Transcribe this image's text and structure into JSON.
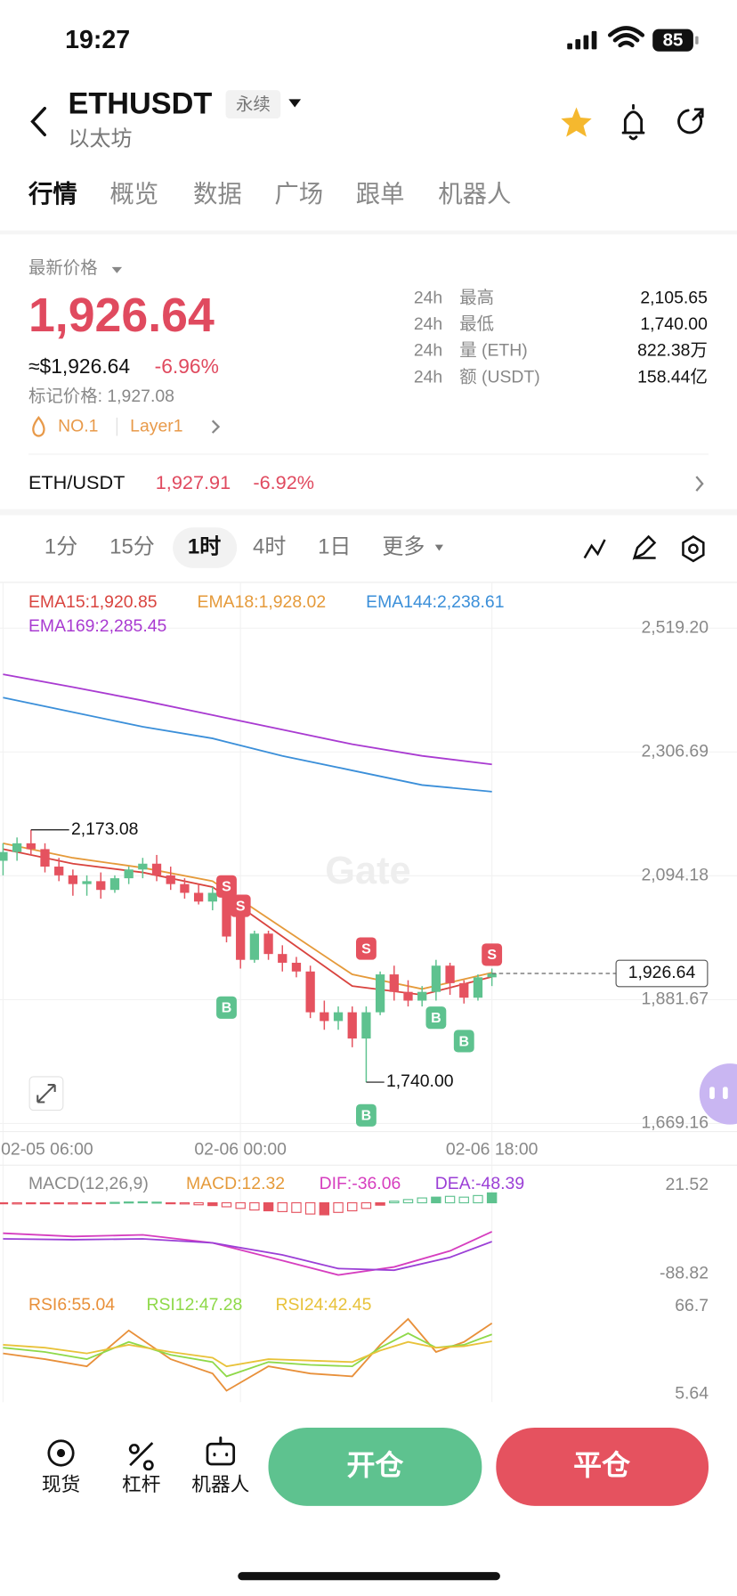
{
  "status": {
    "time": "19:27",
    "battery": "85"
  },
  "header": {
    "symbol": "ETHUSDT",
    "tag": "永续",
    "name": "以太坊"
  },
  "tabs": [
    "行情",
    "概览",
    "数据",
    "广场",
    "跟单",
    "机器人"
  ],
  "price": {
    "label": "最新价格",
    "last": "1,926.64",
    "approx": "≈$1,926.64",
    "change": "-6.96%",
    "mark": "标记价格: 1,927.08",
    "rank": "NO.1",
    "sector": "Layer1"
  },
  "stats": [
    {
      "period": "24h",
      "label": "最高",
      "value": "2,105.65"
    },
    {
      "period": "24h",
      "label": "最低",
      "value": "1,740.00"
    },
    {
      "period": "24h",
      "label": "量 (ETH)",
      "value": "822.38万"
    },
    {
      "period": "24h",
      "label": "额 (USDT)",
      "value": "158.44亿"
    }
  ],
  "spot": {
    "pair": "ETH/USDT",
    "price": "1,927.91",
    "change": "-6.92%"
  },
  "intervals": [
    "1分",
    "15分",
    "1时",
    "4时",
    "1日",
    "更多"
  ],
  "chart_data": {
    "type": "candlestick",
    "watermark": "Gate",
    "categories": [
      "02-05 06:00",
      null,
      null,
      null,
      null,
      null,
      null,
      null,
      null,
      null,
      null,
      null,
      null,
      null,
      null,
      null,
      null,
      "02-06 00:00",
      null,
      null,
      null,
      null,
      null,
      null,
      null,
      null,
      null,
      null,
      null,
      null,
      null,
      null,
      null,
      null,
      null,
      "02-06 18:00"
    ],
    "open": [
      2120,
      2135,
      2150,
      2140,
      2110,
      2095,
      2080,
      2085,
      2070,
      2090,
      2105,
      2115,
      2095,
      2080,
      2065,
      2050,
      2065,
      2030,
      1950,
      1995,
      1960,
      1945,
      1930,
      1860,
      1845,
      1860,
      1815,
      1860,
      1925,
      1895,
      1880,
      1895,
      1940,
      1910,
      1885,
      1920
    ],
    "high": [
      2150,
      2160,
      2173.08,
      2150,
      2125,
      2105,
      2095,
      2100,
      2095,
      2110,
      2125,
      2130,
      2110,
      2090,
      2080,
      2075,
      2070,
      2050,
      2000,
      2000,
      1975,
      1955,
      1940,
      1880,
      1870,
      1870,
      1870,
      1930,
      1940,
      1915,
      1905,
      1950,
      1945,
      1915,
      1925,
      1935
    ],
    "low": [
      2095,
      2120,
      2130,
      2100,
      2085,
      2060,
      2060,
      2055,
      2065,
      2080,
      2090,
      2085,
      2070,
      2055,
      2045,
      2035,
      1980,
      1935,
      1945,
      1950,
      1930,
      1920,
      1850,
      1830,
      1830,
      1800,
      1740,
      1855,
      1880,
      1870,
      1870,
      1880,
      1890,
      1875,
      1880,
      1905
    ],
    "close": [
      2135,
      2150,
      2140,
      2110,
      2095,
      2080,
      2085,
      2070,
      2090,
      2105,
      2115,
      2095,
      2080,
      2065,
      2050,
      2065,
      1990,
      1950,
      1995,
      1960,
      1945,
      1930,
      1860,
      1845,
      1860,
      1815,
      1860,
      1925,
      1895,
      1880,
      1895,
      1940,
      1910,
      1885,
      1920,
      1926.64
    ],
    "colors": {
      "up": "#5ec28f",
      "down": "#e5525f"
    },
    "ylim": [
      1655.2,
      2583.8
    ],
    "yticks": [
      {
        "value": 2519.2,
        "label": "2,519.20"
      },
      {
        "value": 2306.69,
        "label": "2,306.69"
      },
      {
        "value": 2094.18,
        "label": "2,094.18"
      },
      {
        "value": 1881.67,
        "label": "1,881.67"
      },
      {
        "value": 1669.16,
        "label": "1,669.16"
      }
    ],
    "grid": true,
    "series": [
      {
        "name": "EMA15:1,920.85",
        "color": "#d9443f",
        "x": [
          0,
          5,
          10,
          15,
          20,
          25,
          30,
          35
        ],
        "values": [
          2140,
          2115,
          2100,
          2075,
          1990,
          1905,
          1890,
          1920.85
        ]
      },
      {
        "name": "EMA18:1,928.02",
        "color": "#e59a3a",
        "x": [
          0,
          5,
          10,
          15,
          20,
          25,
          30,
          35
        ],
        "values": [
          2150,
          2125,
          2108,
          2085,
          2005,
          1925,
          1900,
          1928.02
        ]
      },
      {
        "name": "EMA144:2,238.61",
        "color": "#3b8fd9",
        "x": [
          0,
          5,
          10,
          15,
          20,
          25,
          30,
          35
        ],
        "values": [
          2400,
          2375,
          2350,
          2330,
          2300,
          2275,
          2250,
          2238.61
        ]
      },
      {
        "name": "EMA169:2,285.45",
        "color": "#a93bd1",
        "x": [
          0,
          5,
          10,
          15,
          20,
          25,
          30,
          35
        ],
        "values": [
          2440,
          2418,
          2395,
          2370,
          2345,
          2320,
          2300,
          2285.45
        ]
      }
    ],
    "high_label": {
      "value": 2173.08,
      "label": "2,173.08"
    },
    "low_label": {
      "value": 1740,
      "label": "1,740.00"
    },
    "current": {
      "value": 1926.64,
      "label": "1,926.64"
    },
    "signals": {
      "sell": "S",
      "buy": "B"
    },
    "macd": {
      "legend": [
        {
          "text": "MACD(12,26,9)",
          "color": "#888888"
        },
        {
          "text": "MACD:12.32",
          "color": "#e59a3a"
        },
        {
          "text": "DIF:-36.06",
          "color": "#d63ebf"
        },
        {
          "text": "DEA:-48.39",
          "color": "#9b3fd6"
        }
      ],
      "ylim": [
        -105.3,
        40.5
      ],
      "yticks": [
        21.52,
        -88.82
      ],
      "hist": [
        -1,
        -1.5,
        -1,
        -0.8,
        -1.2,
        -1.5,
        -1,
        -0.5,
        0.5,
        1,
        1.2,
        0.8,
        -0.5,
        -1.5,
        -2.5,
        -3.5,
        -5,
        -7,
        -9,
        -10,
        -11,
        -12,
        -14,
        -15,
        -12,
        -10,
        -7,
        -3,
        2,
        4,
        6,
        7,
        8,
        7,
        9,
        12.32
      ],
      "dif": {
        "color": "#d63ebf",
        "x": [
          0,
          5,
          10,
          15,
          20,
          24,
          28,
          32,
          35
        ],
        "values": [
          -38,
          -42,
          -40,
          -50,
          -72,
          -90,
          -80,
          -60,
          -36.06
        ]
      },
      "dea": {
        "color": "#9b3fd6",
        "x": [
          0,
          5,
          10,
          15,
          20,
          24,
          28,
          32,
          35
        ],
        "values": [
          -45,
          -46,
          -45,
          -50,
          -65,
          -82,
          -84,
          -68,
          -48.39
        ]
      }
    },
    "rsi": {
      "ylim": [
        0,
        78
      ],
      "yticks": [
        66.7,
        5.64
      ],
      "series": [
        {
          "name": "RSI6:55.04",
          "color": "#e8903a",
          "x": [
            0,
            3,
            6,
            9,
            12,
            15,
            16,
            19,
            22,
            25,
            27,
            29,
            31,
            33,
            35
          ],
          "values": [
            34,
            30,
            25,
            50,
            30,
            20,
            8,
            25,
            20,
            18,
            40,
            58,
            35,
            42,
            55.04
          ]
        },
        {
          "name": "RSI12:47.28",
          "color": "#8fd94a",
          "x": [
            0,
            3,
            6,
            9,
            12,
            15,
            16,
            19,
            22,
            25,
            27,
            29,
            31,
            33,
            35
          ],
          "values": [
            38,
            35,
            30,
            42,
            33,
            28,
            18,
            28,
            26,
            25,
            38,
            48,
            38,
            40,
            47.28
          ]
        },
        {
          "name": "RSI24:42.45",
          "color": "#e8c23a",
          "x": [
            0,
            3,
            6,
            9,
            12,
            15,
            16,
            19,
            22,
            25,
            27,
            29,
            31,
            33,
            35
          ],
          "values": [
            40,
            38,
            34,
            40,
            35,
            31,
            25,
            30,
            29,
            28,
            36,
            42,
            38,
            39,
            42.45
          ]
        }
      ]
    }
  },
  "bottom": {
    "spot": "现货",
    "margin": "杠杆",
    "bot": "机器人",
    "open": "开仓",
    "close": "平仓"
  }
}
